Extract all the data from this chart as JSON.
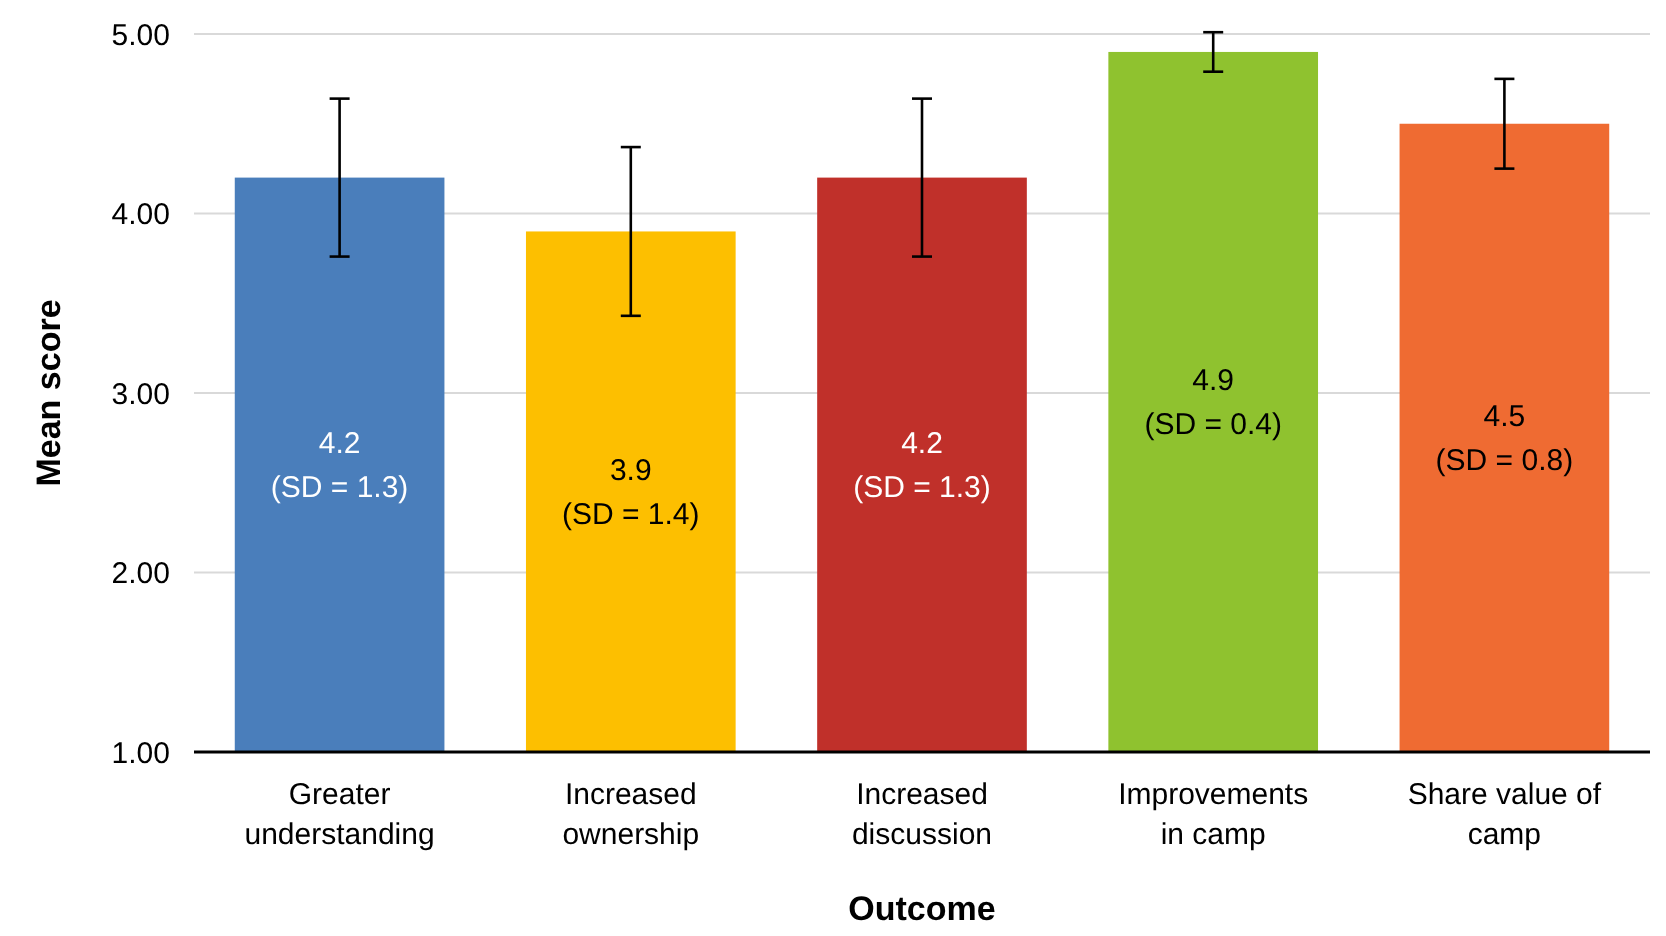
{
  "chart_data": {
    "type": "bar",
    "xlabel": "Outcome",
    "ylabel": "Mean score",
    "categories": [
      "Greater understanding",
      "Increased ownership",
      "Increased discussion",
      "Improvements in camp",
      "Share value of camp"
    ],
    "values": [
      4.2,
      3.9,
      4.2,
      4.9,
      4.5
    ],
    "colors": [
      "#4a7ebb",
      "#fdbf00",
      "#c0302a",
      "#8fc22f",
      "#ef6b32"
    ],
    "errors": [
      0.44,
      0.47,
      0.44,
      0.11,
      0.25
    ],
    "value_labels": [
      "4.2\n(SD = 1.3)",
      "3.9\n(SD = 1.4)",
      "4.2\n(SD = 1.3)",
      "4.9\n(SD = 0.4)",
      "4.5\n(SD = 0.8)"
    ],
    "ylim": [
      1,
      5
    ],
    "yticks": [
      {
        "value": 1,
        "label": "1.00"
      },
      {
        "value": 2,
        "label": "2.00"
      },
      {
        "value": 3,
        "label": "3.00"
      },
      {
        "value": 4,
        "label": "4.00"
      },
      {
        "value": 5,
        "label": "5.00"
      }
    ],
    "grid": "y"
  }
}
